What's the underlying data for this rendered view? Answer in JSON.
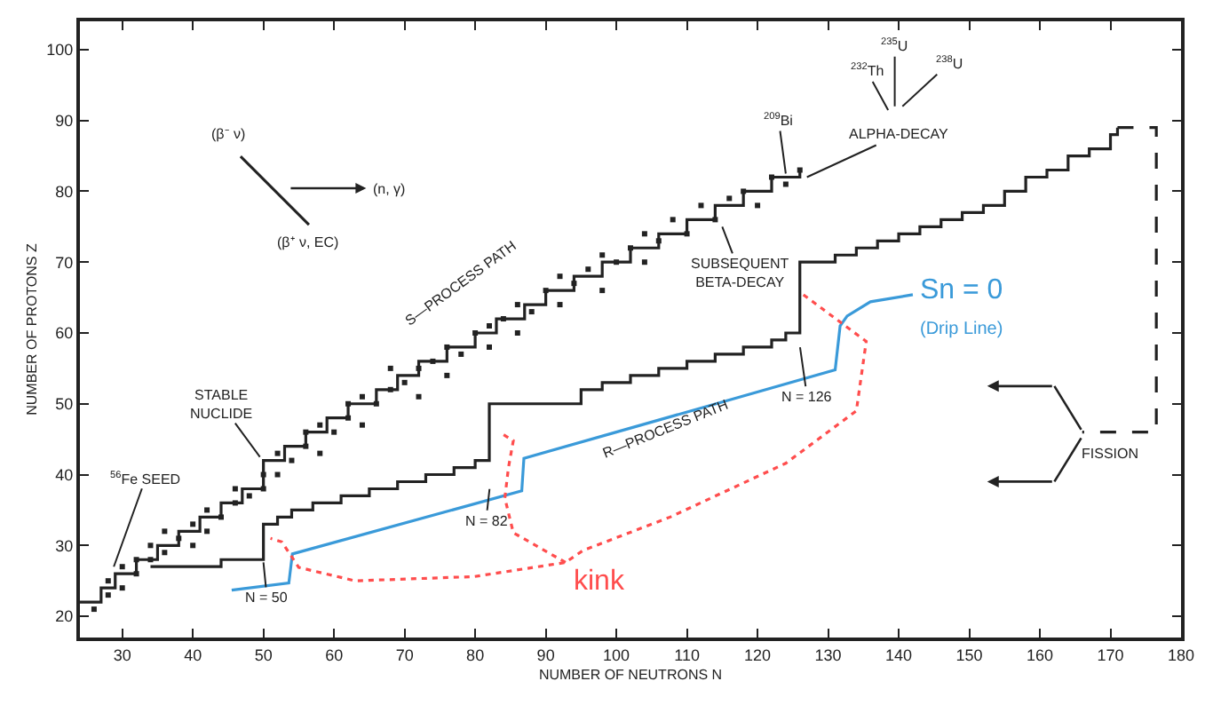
{
  "chart_data": {
    "type": "line",
    "xlabel": "NUMBER OF NEUTRONS N",
    "ylabel": "NUMBER OF PROTONS Z",
    "xlim": [
      24,
      180
    ],
    "ylim": [
      17,
      104
    ],
    "xticks": [
      30,
      40,
      50,
      60,
      70,
      80,
      90,
      100,
      110,
      120,
      130,
      140,
      150,
      160,
      170,
      180
    ],
    "yticks": [
      20,
      30,
      40,
      50,
      60,
      70,
      80,
      90,
      100
    ],
    "series": [
      {
        "type": "scatter",
        "color": "#222222",
        "marker": "square",
        "x": [
          26,
          28,
          28,
          30,
          30,
          32,
          32,
          34,
          34,
          36,
          36,
          38,
          40,
          40,
          42,
          42,
          44,
          46,
          46,
          48,
          50,
          50,
          52,
          52,
          54,
          56,
          56,
          58,
          58,
          60,
          62,
          62,
          64,
          64,
          66,
          68,
          68,
          70,
          72,
          72,
          74,
          76,
          76,
          78,
          80,
          82,
          82,
          84,
          86,
          86,
          88,
          90,
          92,
          92,
          94,
          96,
          98,
          98,
          100,
          102,
          104,
          104,
          106,
          108,
          110,
          112,
          114,
          116,
          118,
          120,
          122,
          124,
          126
        ],
        "values": [
          21,
          23,
          25,
          24,
          27,
          26,
          28,
          28,
          30,
          29,
          32,
          31,
          30,
          33,
          32,
          35,
          34,
          36,
          38,
          37,
          38,
          40,
          40,
          43,
          42,
          44,
          46,
          43,
          47,
          46,
          48,
          50,
          47,
          51,
          50,
          52,
          55,
          53,
          51,
          55,
          56,
          54,
          58,
          57,
          60,
          58,
          61,
          62,
          60,
          64,
          63,
          66,
          64,
          68,
          67,
          69,
          66,
          71,
          70,
          72,
          70,
          74,
          73,
          76,
          74,
          78,
          76,
          79,
          80,
          78,
          82,
          81,
          83
        ]
      },
      {
        "type": "step",
        "color": "#222222",
        "line_style": "solid",
        "x": [
          24,
          27,
          29,
          32,
          35,
          38,
          41,
          44,
          47,
          50,
          53,
          56,
          59,
          62,
          66,
          69,
          72,
          76,
          80,
          83,
          87,
          90,
          94,
          98,
          102,
          106,
          110,
          114,
          118,
          122,
          126
        ],
        "values": [
          22,
          24,
          26,
          28,
          30,
          32,
          34,
          36,
          38,
          42,
          44,
          46,
          48,
          50,
          52,
          54,
          56,
          58,
          60,
          62,
          64,
          66,
          68,
          70,
          72,
          74,
          76,
          78,
          80,
          82,
          83
        ]
      },
      {
        "type": "step",
        "color": "#222222",
        "line_style": "solid",
        "x": [
          34,
          44,
          50,
          52,
          54,
          57,
          61,
          65,
          69,
          73,
          77,
          80,
          82,
          95,
          98,
          102,
          106,
          110,
          114,
          118,
          122,
          124,
          126,
          131,
          134,
          137,
          140,
          143,
          146,
          149,
          152,
          155,
          158,
          161,
          164,
          167,
          170,
          171
        ],
        "values": [
          27,
          28,
          33,
          34,
          35,
          36,
          37,
          38,
          39,
          40,
          41,
          42,
          50,
          52,
          53,
          54,
          55,
          56,
          57,
          58,
          59,
          60,
          70,
          71,
          72,
          73,
          74,
          75,
          76,
          77,
          78,
          80,
          82,
          83,
          85,
          86,
          88,
          89
        ]
      },
      {
        "color": "#3a9ad9",
        "line_style": "solid",
        "x": [
          45.5,
          53.6,
          54.1,
          86.6,
          86.9,
          100,
          131,
          131.7,
          132.7,
          136,
          142
        ],
        "values": [
          23.7,
          24.7,
          28.8,
          37.7,
          42.3,
          46,
          54.8,
          61,
          62.4,
          64.4,
          65.4
        ]
      },
      {
        "color": "#ff4d4d",
        "line_style": "dotted",
        "x": [
          126.5,
          135.4,
          134,
          124,
          107.6,
          95.3,
          92.8,
          79.8,
          63,
          55,
          52.6,
          51
        ],
        "values": [
          65.4,
          58.8,
          49,
          41.6,
          34,
          29.3,
          27.6,
          25.6,
          25,
          26.9,
          30.5,
          31
        ]
      },
      {
        "color": "#ff4d4d",
        "line_style": "dotted",
        "x": [
          92.8,
          85.4,
          84.2,
          84.7,
          85.4,
          83.4
        ],
        "values": [
          27.6,
          31.8,
          36.7,
          40.9,
          44.8,
          46
        ]
      },
      {
        "color": "#222222",
        "line_style": "dashed",
        "x": [
          171,
          176.5,
          176.5,
          166
        ],
        "values": [
          89,
          89,
          46,
          46
        ]
      }
    ],
    "annotations": [
      "S—PROCESS PATH",
      {
        "text": "R—PROCESS PATH",
        "x": 107,
        "y": 46.5
      },
      {
        "text": "STABLE\nNUCLIDE",
        "x": 49.5,
        "y": 42.5
      },
      {
        "text": "$^{56}$Fe SEED",
        "x": 28.8,
        "y": 27
      },
      {
        "text": "N = 50",
        "x": 50,
        "y": 27.6
      },
      "N = 82",
      "N = 126",
      {
        "text": "$^{209}$Bi",
        "x": 124,
        "y": 82.5
      },
      {
        "text": "ALPHA-DECAY",
        "x": 127,
        "y": 82
      },
      "$^{232}$Th",
      "$^{235}$U",
      "$^{238}$U",
      {
        "text": "SUBSEQUENT\nBETA-DECAY",
        "x": 115,
        "y": 75
      },
      "FISSION",
      "Sn = 0",
      "(Drip Line)",
      "kink",
      "(β⁻ ν)",
      "(n, γ)",
      "(β⁺ ν, EC)"
    ]
  }
}
